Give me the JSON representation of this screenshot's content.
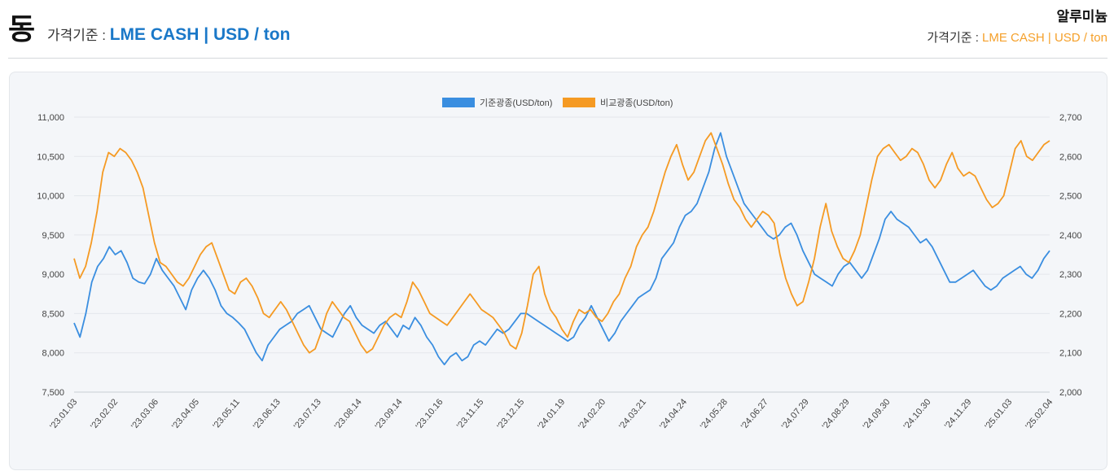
{
  "header": {
    "metal": "동",
    "basis_prefix": "가격기준 : ",
    "basis_value": "LME CASH | USD / ton",
    "compare_metal": "알루미늄",
    "compare_basis_prefix": "가격기준 : ",
    "compare_basis_value": "LME CASH | USD / ton"
  },
  "colors": {
    "primary": "#3a8ee0",
    "compare": "#f59a23",
    "accent_text": "#1a78c8"
  },
  "chart_data": {
    "type": "line",
    "legend": [
      "기준광종(USD/ton)",
      "비교광종(USD/ton)"
    ],
    "left_axis": {
      "min": 7500,
      "max": 11000,
      "ticks": [
        "7,500",
        "8,000",
        "8,500",
        "9,000",
        "9,500",
        "10,000",
        "10,500",
        "11,000"
      ]
    },
    "right_axis": {
      "min": 2000,
      "max": 2700,
      "ticks": [
        "2,000",
        "2,100",
        "2,200",
        "2,300",
        "2,400",
        "2,500",
        "2,600",
        "2,700"
      ]
    },
    "x_labels": [
      "'23.01.03",
      "'23.02.02",
      "'23.03.06",
      "'23.04.05",
      "'23.05.11",
      "'23.06.13",
      "'23.07.13",
      "'23.08.14",
      "'23.09.14",
      "'23.10.16",
      "'23.11.15",
      "'23.12.15",
      "'24.01.19",
      "'24.02.20",
      "'24.03.21",
      "'24.04.24",
      "'24.05.28",
      "'24.06.27",
      "'24.07.29",
      "'24.08.29",
      "'24.09.30",
      "'24.10.30",
      "'24.11.29",
      "'25.01.03",
      "'25.02.04"
    ],
    "series": [
      {
        "name": "기준광종(USD/ton)",
        "axis": "left",
        "values": [
          8380,
          8200,
          8500,
          8900,
          9100,
          9200,
          9350,
          9250,
          9300,
          9150,
          8950,
          8900,
          8880,
          9000,
          9200,
          9050,
          8950,
          8850,
          8700,
          8550,
          8800,
          8950,
          9050,
          8950,
          8800,
          8600,
          8500,
          8450,
          8380,
          8300,
          8150,
          8000,
          7900,
          8100,
          8200,
          8300,
          8350,
          8400,
          8500,
          8550,
          8600,
          8450,
          8300,
          8250,
          8200,
          8350,
          8500,
          8600,
          8450,
          8350,
          8300,
          8250,
          8350,
          8400,
          8300,
          8200,
          8350,
          8300,
          8450,
          8350,
          8200,
          8100,
          7950,
          7850,
          7950,
          8000,
          7900,
          7950,
          8100,
          8150,
          8100,
          8200,
          8300,
          8250,
          8300,
          8400,
          8500,
          8500,
          8450,
          8400,
          8350,
          8300,
          8250,
          8200,
          8150,
          8200,
          8350,
          8450,
          8600,
          8450,
          8300,
          8150,
          8250,
          8400,
          8500,
          8600,
          8700,
          8750,
          8800,
          8950,
          9200,
          9300,
          9400,
          9600,
          9750,
          9800,
          9900,
          10100,
          10300,
          10600,
          10800,
          10500,
          10300,
          10100,
          9900,
          9800,
          9700,
          9600,
          9500,
          9450,
          9500,
          9600,
          9650,
          9500,
          9300,
          9150,
          9000,
          8950,
          8900,
          8850,
          9000,
          9100,
          9150,
          9050,
          8950,
          9050,
          9250,
          9450,
          9700,
          9800,
          9700,
          9650,
          9600,
          9500,
          9400,
          9450,
          9350,
          9200,
          9050,
          8900,
          8900,
          8950,
          9000,
          9050,
          8950,
          8850,
          8800,
          8850,
          8950,
          9000,
          9050,
          9100,
          9000,
          8950,
          9050,
          9200,
          9300
        ]
      },
      {
        "name": "비교광종(USD/ton)",
        "axis": "right",
        "values": [
          2340,
          2290,
          2320,
          2380,
          2460,
          2560,
          2610,
          2600,
          2620,
          2610,
          2590,
          2560,
          2520,
          2450,
          2380,
          2330,
          2320,
          2300,
          2280,
          2270,
          2290,
          2320,
          2350,
          2370,
          2380,
          2340,
          2300,
          2260,
          2250,
          2280,
          2290,
          2270,
          2240,
          2200,
          2190,
          2210,
          2230,
          2210,
          2180,
          2150,
          2120,
          2100,
          2110,
          2150,
          2200,
          2230,
          2210,
          2190,
          2180,
          2150,
          2120,
          2100,
          2110,
          2140,
          2170,
          2190,
          2200,
          2190,
          2230,
          2280,
          2260,
          2230,
          2200,
          2190,
          2180,
          2170,
          2190,
          2210,
          2230,
          2250,
          2230,
          2210,
          2200,
          2190,
          2170,
          2150,
          2120,
          2110,
          2150,
          2220,
          2300,
          2320,
          2250,
          2210,
          2190,
          2160,
          2140,
          2180,
          2210,
          2200,
          2210,
          2190,
          2180,
          2200,
          2230,
          2250,
          2290,
          2320,
          2370,
          2400,
          2420,
          2460,
          2510,
          2560,
          2600,
          2630,
          2580,
          2540,
          2560,
          2600,
          2640,
          2660,
          2620,
          2580,
          2530,
          2490,
          2470,
          2440,
          2420,
          2440,
          2460,
          2450,
          2430,
          2350,
          2290,
          2250,
          2220,
          2230,
          2280,
          2340,
          2420,
          2480,
          2410,
          2370,
          2340,
          2330,
          2360,
          2400,
          2470,
          2540,
          2600,
          2620,
          2630,
          2610,
          2590,
          2600,
          2620,
          2610,
          2580,
          2540,
          2520,
          2540,
          2580,
          2610,
          2570,
          2550,
          2560,
          2550,
          2520,
          2490,
          2470,
          2480,
          2500,
          2560,
          2620,
          2640,
          2600,
          2590,
          2610,
          2630,
          2640
        ]
      }
    ]
  }
}
